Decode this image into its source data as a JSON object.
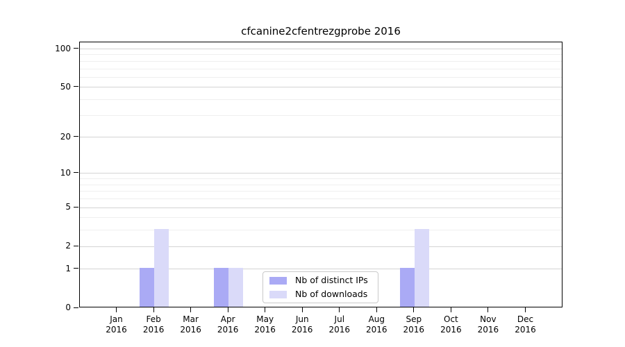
{
  "title": "cfcanine2cfentrezgprobe 2016",
  "chart_data": {
    "type": "bar",
    "title": "cfcanine2cfentrezgprobe 2016",
    "categories": [
      "Jan 2016",
      "Feb 2016",
      "Mar 2016",
      "Apr 2016",
      "May 2016",
      "Jun 2016",
      "Jul 2016",
      "Aug 2016",
      "Sep 2016",
      "Oct 2016",
      "Nov 2016",
      "Dec 2016"
    ],
    "series": [
      {
        "name": "Nb of distinct IPs",
        "color": "#aaaaf5",
        "values": [
          0,
          1,
          0,
          1,
          0,
          0,
          0,
          0,
          1,
          0,
          0,
          0
        ]
      },
      {
        "name": "Nb of downloads",
        "color": "#dadaf9",
        "values": [
          0,
          3,
          0,
          1,
          0,
          0,
          0,
          0,
          3,
          0,
          0,
          0
        ]
      }
    ],
    "xlabel": "",
    "ylabel": "",
    "yscale": "log10(value+1)",
    "y_ticks": [
      0,
      1,
      2,
      5,
      10,
      20,
      50,
      100
    ],
    "y_minor_ticks": [
      3,
      4,
      6,
      7,
      8,
      9,
      30,
      40,
      60,
      70,
      80,
      90
    ],
    "ylim": [
      0,
      112
    ],
    "grid": true,
    "legend_position": "bottom-center"
  },
  "colors": {
    "grid_major": "#d4d4d4",
    "grid_minor": "#efefef",
    "axis": "#000000"
  }
}
